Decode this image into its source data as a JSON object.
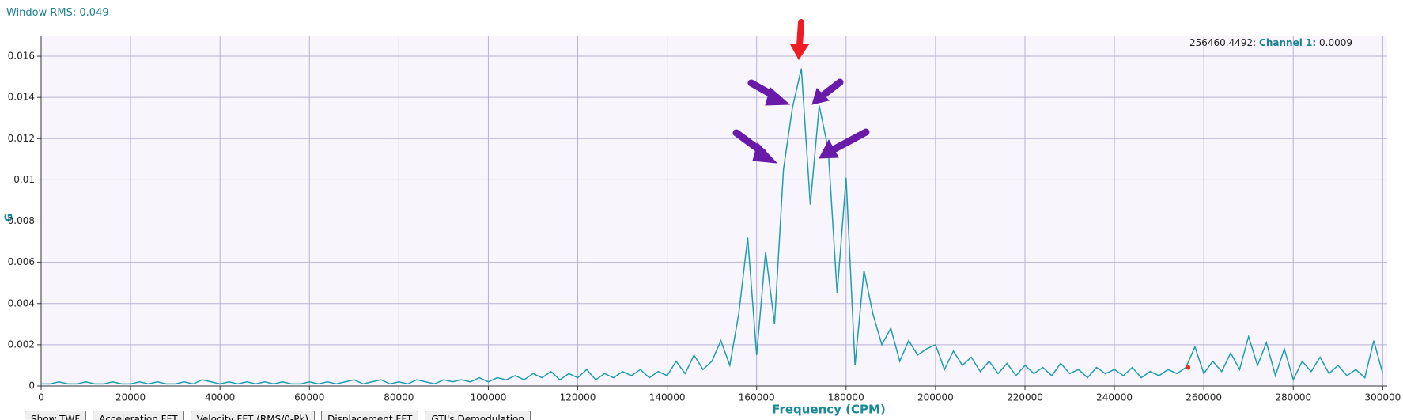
{
  "header": {
    "rms": "Window RMS: 0.049"
  },
  "buttons": [
    "Show TWF",
    "Acceleration FFT",
    "Velocity FFT (RMS/0-Pk)",
    "Displacement FFT",
    "GTI's Demodulation"
  ],
  "chart_data": {
    "type": "line",
    "xlabel": "Frequency (CPM)",
    "ylabel": "G",
    "color": "#1f9db0",
    "grid": true,
    "xlim": [
      0,
      301000
    ],
    "ylim": [
      0,
      0.017
    ],
    "xticks": [
      0,
      20000,
      40000,
      60000,
      80000,
      100000,
      120000,
      140000,
      160000,
      180000,
      200000,
      220000,
      240000,
      260000,
      280000,
      300000
    ],
    "yticks": [
      0,
      0.002,
      0.004,
      0.006,
      0.008,
      0.01,
      0.012,
      0.014,
      0.016
    ],
    "cursor": {
      "x": {
        "value": 256460.4492,
        "label": "256460.4492:"
      },
      "series_label": "Channel 1:",
      "y": 0.0009,
      "color": "#e8302a"
    },
    "x": [
      0,
      2000,
      4000,
      6000,
      8000,
      10000,
      12000,
      14000,
      16000,
      18000,
      20000,
      22000,
      24000,
      26000,
      28000,
      30000,
      32000,
      34000,
      36000,
      38000,
      40000,
      42000,
      44000,
      46000,
      48000,
      50000,
      52000,
      54000,
      56000,
      58000,
      60000,
      62000,
      64000,
      66000,
      68000,
      70000,
      72000,
      74000,
      76000,
      78000,
      80000,
      82000,
      84000,
      86000,
      88000,
      90000,
      92000,
      94000,
      96000,
      98000,
      100000,
      102000,
      104000,
      106000,
      108000,
      110000,
      112000,
      114000,
      116000,
      118000,
      120000,
      122000,
      124000,
      126000,
      128000,
      130000,
      132000,
      134000,
      136000,
      138000,
      140000,
      142000,
      144000,
      146000,
      148000,
      150000,
      152000,
      154000,
      156000,
      158000,
      160000,
      162000,
      164000,
      166000,
      168000,
      170000,
      172000,
      174000,
      176000,
      178000,
      180000,
      182000,
      184000,
      186000,
      188000,
      190000,
      192000,
      194000,
      196000,
      198000,
      200000,
      202000,
      204000,
      206000,
      208000,
      210000,
      212000,
      214000,
      216000,
      218000,
      220000,
      222000,
      224000,
      226000,
      228000,
      230000,
      232000,
      234000,
      236000,
      238000,
      240000,
      242000,
      244000,
      246000,
      248000,
      250000,
      252000,
      254000,
      256000,
      258000,
      260000,
      262000,
      264000,
      266000,
      268000,
      270000,
      272000,
      274000,
      276000,
      278000,
      280000,
      282000,
      284000,
      286000,
      288000,
      290000,
      292000,
      294000,
      296000,
      298000,
      300000
    ],
    "values": [
      0.0001,
      0.0001,
      0.0002,
      0.0001,
      0.0001,
      0.0002,
      0.0001,
      0.0001,
      0.0002,
      0.0001,
      0.0001,
      0.0002,
      0.0001,
      0.0002,
      0.0001,
      0.0001,
      0.0002,
      0.0001,
      0.0003,
      0.0002,
      0.0001,
      0.0002,
      0.0001,
      0.0002,
      0.0001,
      0.0002,
      0.0001,
      0.0002,
      0.0001,
      0.0001,
      0.0002,
      0.0001,
      0.0002,
      0.0001,
      0.0002,
      0.0003,
      0.0001,
      0.0002,
      0.0003,
      0.0001,
      0.0002,
      0.0001,
      0.0003,
      0.0002,
      0.0001,
      0.0003,
      0.0002,
      0.0003,
      0.0002,
      0.0004,
      0.0002,
      0.0004,
      0.0003,
      0.0005,
      0.0003,
      0.0006,
      0.0004,
      0.0007,
      0.0003,
      0.0006,
      0.0004,
      0.0008,
      0.0003,
      0.0006,
      0.0004,
      0.0007,
      0.0005,
      0.0008,
      0.0004,
      0.0007,
      0.0005,
      0.0012,
      0.0006,
      0.0015,
      0.0008,
      0.0012,
      0.0022,
      0.001,
      0.0035,
      0.0072,
      0.0015,
      0.0065,
      0.003,
      0.0105,
      0.0135,
      0.0154,
      0.0088,
      0.0136,
      0.0115,
      0.0045,
      0.0101,
      0.001,
      0.0056,
      0.0035,
      0.002,
      0.0028,
      0.0012,
      0.0022,
      0.0015,
      0.0018,
      0.002,
      0.0008,
      0.0017,
      0.001,
      0.0014,
      0.0007,
      0.0012,
      0.0006,
      0.0011,
      0.0005,
      0.001,
      0.0006,
      0.0009,
      0.0005,
      0.0011,
      0.0006,
      0.0008,
      0.0004,
      0.0009,
      0.0006,
      0.0008,
      0.0005,
      0.0009,
      0.0004,
      0.0007,
      0.0005,
      0.0008,
      0.0006,
      0.0009,
      0.0019,
      0.0006,
      0.0012,
      0.0007,
      0.0016,
      0.0008,
      0.0024,
      0.001,
      0.0021,
      0.0005,
      0.0018,
      0.0003,
      0.0012,
      0.0007,
      0.0014,
      0.0006,
      0.001,
      0.0005,
      0.0008,
      0.0004,
      0.0022,
      0.0006
    ]
  }
}
